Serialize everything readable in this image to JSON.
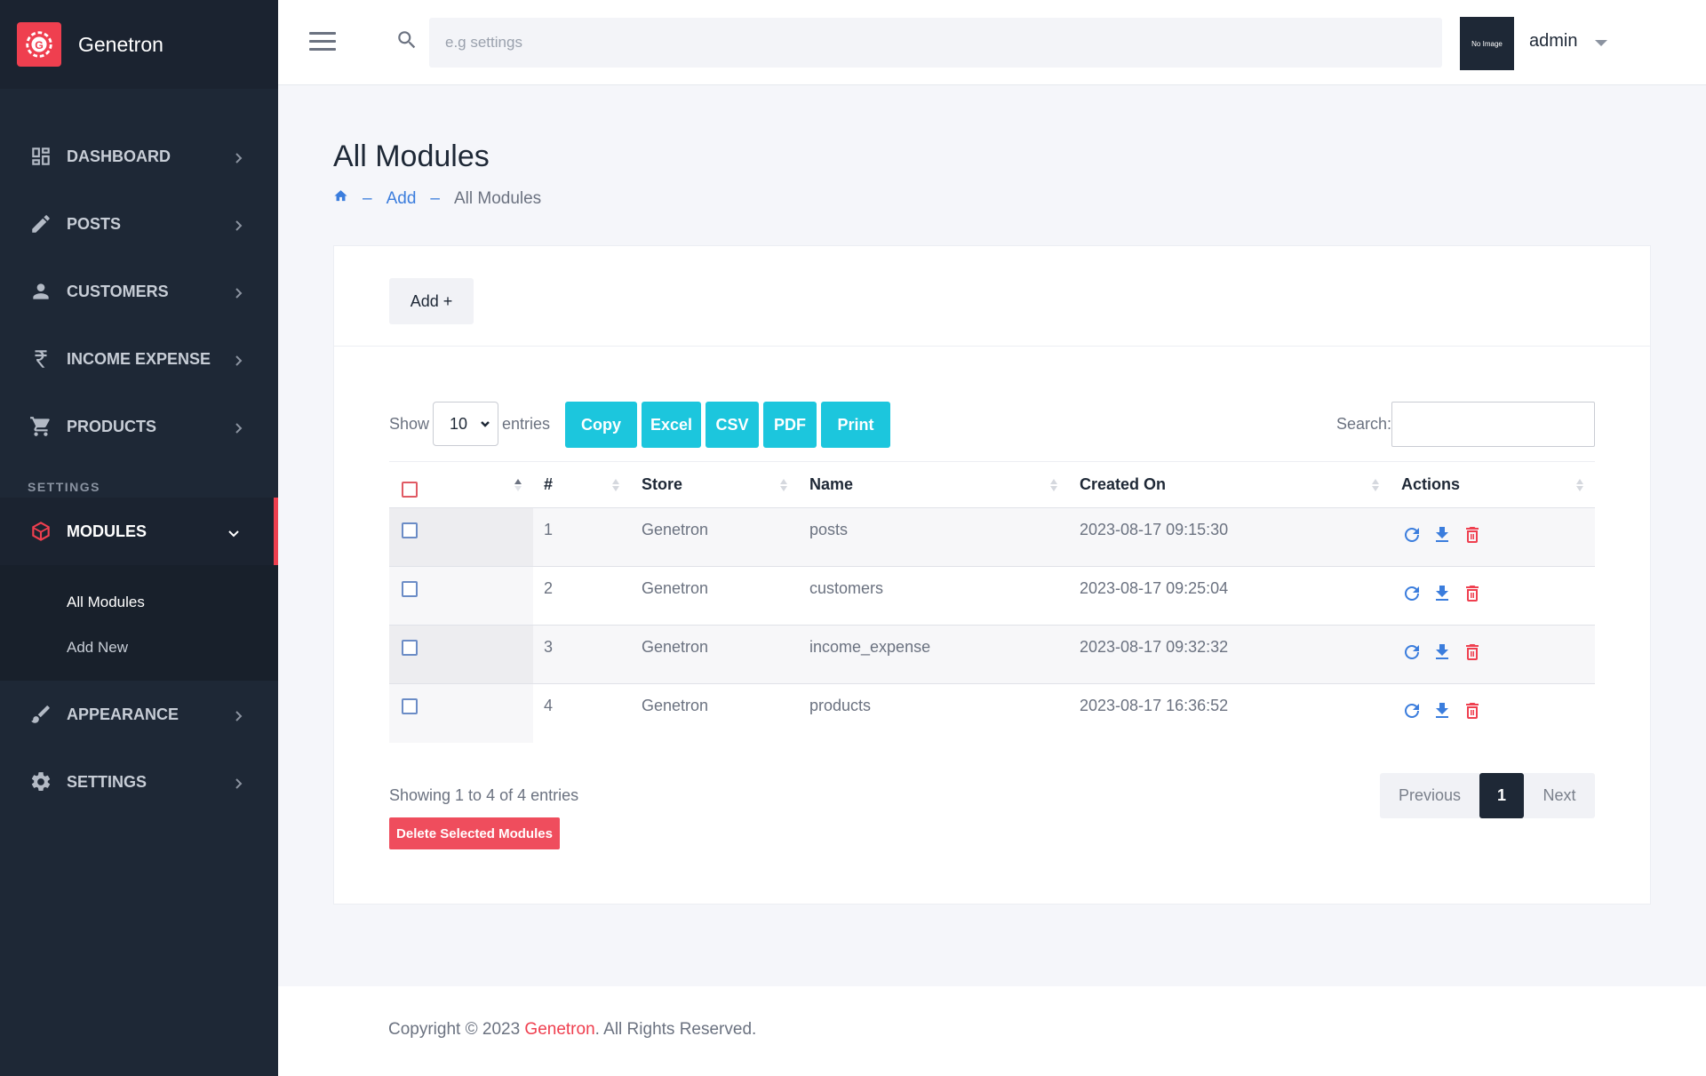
{
  "brand": {
    "name": "Genetron"
  },
  "sidebar": {
    "items": [
      {
        "label": "DASHBOARD",
        "icon": "dashboard-icon"
      },
      {
        "label": "POSTS",
        "icon": "pencil-icon"
      },
      {
        "label": "CUSTOMERS",
        "icon": "person-icon"
      },
      {
        "label": "INCOME EXPENSE",
        "icon": "rupee-icon"
      },
      {
        "label": "PRODUCTS",
        "icon": "cart-icon"
      }
    ],
    "section_label": "SETTINGS",
    "active_item": {
      "label": "MODULES",
      "icon": "cube-icon"
    },
    "sub_items": [
      "All Modules",
      "Add New"
    ],
    "after_items": [
      {
        "label": "APPEARANCE",
        "icon": "brush-icon"
      },
      {
        "label": "SETTINGS",
        "icon": "gear-icon"
      }
    ]
  },
  "topbar": {
    "search_placeholder": "e.g settings",
    "avatar_text": "No Image",
    "user_name": "admin"
  },
  "page": {
    "title": "All Modules",
    "breadcrumb": {
      "link": "Add",
      "current": "All Modules"
    }
  },
  "card": {
    "add_button": "Add +",
    "show_label": "Show",
    "entries_label": "entries",
    "page_size": "10",
    "export_buttons": [
      "Copy",
      "Excel",
      "CSV",
      "PDF",
      "Print"
    ],
    "search_label": "Search:",
    "columns": [
      "#",
      "Store",
      "Name",
      "Created On",
      "Actions"
    ],
    "rows": [
      {
        "num": "1",
        "store": "Genetron",
        "name": "posts",
        "created": "2023-08-17 09:15:30"
      },
      {
        "num": "2",
        "store": "Genetron",
        "name": "customers",
        "created": "2023-08-17 09:25:04"
      },
      {
        "num": "3",
        "store": "Genetron",
        "name": "income_expense",
        "created": "2023-08-17 09:32:32"
      },
      {
        "num": "4",
        "store": "Genetron",
        "name": "products",
        "created": "2023-08-17 16:36:52"
      }
    ],
    "info": "Showing 1 to 4 of 4 entries",
    "delete_button": "Delete Selected Modules",
    "pager": {
      "prev": "Previous",
      "current": "1",
      "next": "Next"
    }
  },
  "footer": {
    "prefix": "Copyright © 2023 ",
    "brand": "Genetron",
    "suffix": ". All Rights Reserved."
  },
  "colors": {
    "accent": "#ef3f4f",
    "sidebar": "#1e2836",
    "button": "#1cc6dd",
    "link": "#3b7ddd"
  }
}
